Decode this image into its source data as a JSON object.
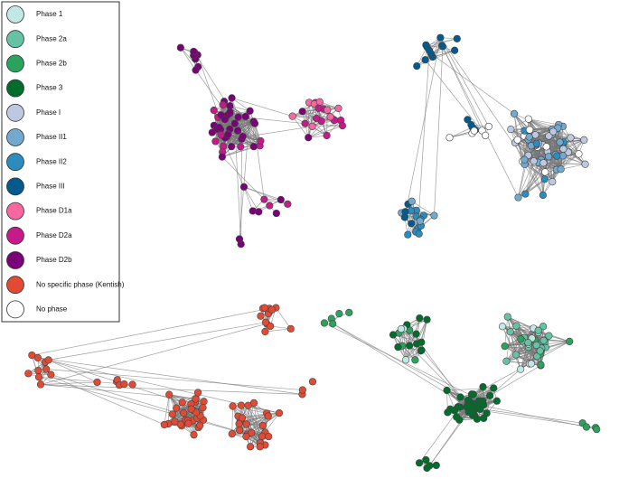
{
  "legend": {
    "items": [
      {
        "label": "Phase 1",
        "color": "#c2e8e5"
      },
      {
        "label": "Phase 2a",
        "color": "#66c2a4"
      },
      {
        "label": "Phase 2b",
        "color": "#2ca25f"
      },
      {
        "label": "Phase 3",
        "color": "#006d2c"
      },
      {
        "label": "Phase I",
        "color": "#bdc9e1"
      },
      {
        "label": "Phase II1",
        "color": "#74a9cf"
      },
      {
        "label": "Phase II2",
        "color": "#2b8cbe"
      },
      {
        "label": "Phase III",
        "color": "#045a8d"
      },
      {
        "label": "Phase D1a",
        "color": "#f768a1"
      },
      {
        "label": "Phase D2a",
        "color": "#c51b8a"
      },
      {
        "label": "Phase D2b",
        "color": "#7a0177"
      },
      {
        "label": "No specific phase (Kentish)",
        "color": "#e34a33"
      },
      {
        "label": "No phase",
        "color": "#ffffff"
      }
    ]
  }
}
